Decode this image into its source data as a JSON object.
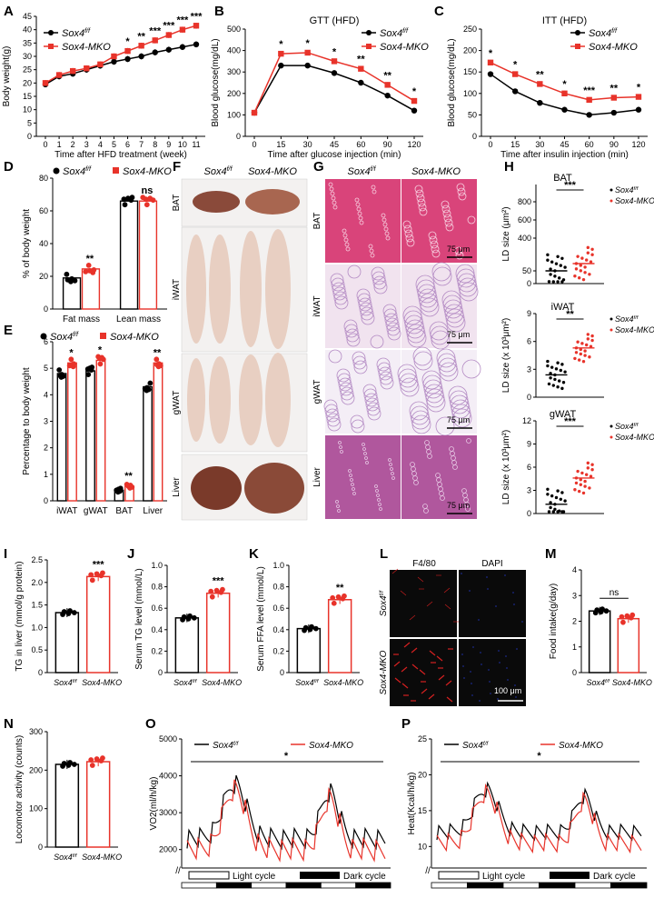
{
  "colors": {
    "ctrl": "#000000",
    "ko": "#e8332a",
    "okBlack": "#1a1a1a",
    "micro_blue": "#1c2a8a"
  },
  "legend": {
    "ctrl": "Sox4f/f",
    "ko": "Sox4-MKO"
  },
  "panels": [
    "A",
    "B",
    "C",
    "D",
    "E",
    "F",
    "G",
    "H",
    "I",
    "J",
    "K",
    "L",
    "M",
    "N",
    "O",
    "P"
  ],
  "chart_data": [
    {
      "id": "A",
      "type": "line",
      "xlabel": "Time after HFD treatment (week)",
      "ylabel": "Body weight(g)",
      "ylim": [
        0,
        45
      ],
      "yticks": [
        0,
        5,
        10,
        15,
        20,
        25,
        30,
        35,
        40,
        45
      ],
      "x": [
        0,
        1,
        2,
        3,
        4,
        5,
        6,
        7,
        8,
        9,
        10,
        11
      ],
      "series": [
        {
          "name": "Sox4f/f",
          "values": [
            19.5,
            22.5,
            23.5,
            25,
            26.5,
            28,
            29,
            30,
            31.5,
            32.5,
            33.5,
            34.5
          ]
        },
        {
          "name": "Sox4-MKO",
          "values": [
            20,
            23,
            24.5,
            25.5,
            27,
            30,
            32,
            34,
            36,
            38,
            40,
            41.5
          ]
        }
      ],
      "sig": [
        "",
        "",
        "",
        "",
        "",
        "",
        "*",
        "**",
        "***",
        "***",
        "***",
        "***"
      ]
    },
    {
      "id": "B",
      "type": "line",
      "title": "GTT (HFD)",
      "xlabel": "Time after glucose injection (min)",
      "ylabel": "Blood glucose(mg/dL)",
      "ylim": [
        0,
        500
      ],
      "yticks": [
        0,
        100,
        200,
        300,
        400,
        500
      ],
      "x": [
        0,
        15,
        30,
        45,
        60,
        90,
        120
      ],
      "series": [
        {
          "name": "Sox4f/f",
          "values": [
            110,
            330,
            330,
            295,
            250,
            190,
            120
          ]
        },
        {
          "name": "Sox4-MKO",
          "values": [
            110,
            385,
            390,
            350,
            315,
            240,
            165
          ]
        }
      ],
      "sig": [
        "",
        "*",
        "*",
        "*",
        "**",
        "**",
        "*"
      ]
    },
    {
      "id": "C",
      "type": "line",
      "title": "ITT (HFD)",
      "xlabel": "Time after insulin injection (min)",
      "ylabel": "Blood glucose(mg/dL)",
      "ylim": [
        0,
        250
      ],
      "yticks": [
        0,
        50,
        100,
        150,
        200,
        250
      ],
      "x": [
        0,
        15,
        30,
        45,
        60,
        90,
        120
      ],
      "series": [
        {
          "name": "Sox4f/f",
          "values": [
            145,
            105,
            78,
            62,
            50,
            55,
            62
          ]
        },
        {
          "name": "Sox4-MKO",
          "values": [
            172,
            145,
            122,
            100,
            85,
            90,
            92
          ]
        }
      ],
      "sig": [
        "*",
        "*",
        "**",
        "*",
        "***",
        "**",
        "*"
      ]
    },
    {
      "id": "D",
      "type": "bar",
      "ylabel": "% of body weight",
      "ylim": [
        0,
        80
      ],
      "yticks": [
        0,
        20,
        40,
        60,
        80
      ],
      "categories": [
        "Fat mass",
        "Lean mass"
      ],
      "series": [
        {
          "name": "Sox4f/f",
          "values": [
            19,
            66
          ]
        },
        {
          "name": "Sox4-MKO",
          "values": [
            24.5,
            66
          ]
        }
      ],
      "sig": [
        "**",
        "ns"
      ]
    },
    {
      "id": "E",
      "type": "bar",
      "ylabel": "Percentage to body weight",
      "ylim": [
        0,
        6
      ],
      "yticks": [
        0,
        1,
        2,
        3,
        4,
        5,
        6
      ],
      "categories": [
        "iWAT",
        "gWAT",
        "BAT",
        "Liver"
      ],
      "series": [
        {
          "name": "Sox4f/f",
          "values": [
            4.8,
            4.9,
            0.4,
            4.3
          ]
        },
        {
          "name": "Sox4-MKO",
          "values": [
            5.2,
            5.3,
            0.55,
            5.2
          ]
        }
      ],
      "sig": [
        "*",
        "*",
        "**",
        "**"
      ]
    },
    {
      "id": "H1",
      "type": "scatter",
      "title": "BAT",
      "ylabel": "LD size (μm²)",
      "ytick_labels": [
        "0",
        "50",
        "400",
        "600",
        "800"
      ],
      "groups": [
        "Sox4f/f",
        "Sox4-MKO"
      ],
      "means": [
        12,
        20
      ],
      "sig": "***"
    },
    {
      "id": "H2",
      "type": "scatter",
      "title": "iWAT",
      "ylabel": "LD size (x 10³μm²)",
      "ylim": [
        0,
        9
      ],
      "yticks": [
        0,
        3,
        6,
        9
      ],
      "groups": [
        "Sox4f/f",
        "Sox4-MKO"
      ],
      "means": [
        2.4,
        5.3
      ],
      "sig": "**"
    },
    {
      "id": "H3",
      "type": "scatter",
      "title": "gWAT",
      "ylabel": "LD size (x 10³μm²)",
      "ylim": [
        0,
        12
      ],
      "yticks": [
        0,
        3,
        6,
        9,
        12
      ],
      "groups": [
        "Sox4f/f",
        "Sox4-MKO"
      ],
      "means": [
        1.2,
        4.6
      ],
      "sig": "***"
    },
    {
      "id": "I",
      "type": "bar",
      "ylabel": "TG in liver (mmol/g protein)",
      "ylim": [
        0,
        2.5
      ],
      "yticks": [
        0,
        0.5,
        1.0,
        1.5,
        2.0,
        2.5
      ],
      "ytick_labels": [
        "0",
        "0.5",
        "1.0",
        "1.5",
        "2.0",
        "2.5"
      ],
      "categories": [
        "Sox4f/f",
        "Sox4-MKO"
      ],
      "values": [
        1.33,
        2.13
      ],
      "sig": "***"
    },
    {
      "id": "J",
      "type": "bar",
      "ylabel": "Serum TG level (mmol/L)",
      "ylim": [
        0,
        1.0
      ],
      "yticks": [
        0,
        0.2,
        0.4,
        0.6,
        0.8,
        1.0
      ],
      "ytick_labels": [
        "0",
        "0.2",
        "0.4",
        "0.6",
        "0.8",
        "1.0"
      ],
      "categories": [
        "Sox4f/f",
        "Sox4-MKO"
      ],
      "values": [
        0.51,
        0.74
      ],
      "sig": "***"
    },
    {
      "id": "K",
      "type": "bar",
      "ylabel": "Serum FFA level (mmol/L)",
      "ylim": [
        0,
        1.0
      ],
      "yticks": [
        0,
        0.2,
        0.4,
        0.6,
        0.8,
        1.0
      ],
      "ytick_labels": [
        "0",
        "0.2",
        "0.4",
        "0.6",
        "0.8",
        "1.0"
      ],
      "categories": [
        "Sox4f/f",
        "Sox4-MKO"
      ],
      "values": [
        0.41,
        0.68
      ],
      "sig": "**"
    },
    {
      "id": "M",
      "type": "bar",
      "ylabel": "Food intake(g/day)",
      "ylim": [
        0,
        4
      ],
      "yticks": [
        0,
        1,
        2,
        3,
        4
      ],
      "categories": [
        "Sox4f/f",
        "Sox4-MKO"
      ],
      "values": [
        2.4,
        2.1
      ],
      "sig": "ns"
    },
    {
      "id": "N",
      "type": "bar",
      "ylabel": "Locomotor activity (counts)",
      "ylim": [
        0,
        300
      ],
      "yticks": [
        0,
        100,
        200,
        300
      ],
      "categories": [
        "Sox4f/f",
        "Sox4-MKO"
      ],
      "values": [
        215,
        222
      ]
    },
    {
      "id": "O",
      "type": "line",
      "ylabel": "VO2(ml/h/kg)",
      "ylim": [
        1500,
        5000
      ],
      "yticks": [
        2000,
        3000,
        4000,
        5000
      ],
      "sig": "*",
      "cycles": [
        "Light cycle",
        "Dark cycle"
      ]
    },
    {
      "id": "P",
      "type": "line",
      "ylabel": "Heat(Kcal/h/kg)",
      "ylim": [
        7,
        25
      ],
      "yticks": [
        10,
        15,
        20,
        25
      ],
      "sig": "*",
      "cycles": [
        "Light cycle",
        "Dark cycle"
      ]
    }
  ],
  "images": {
    "F_cols": [
      "Sox4f/f",
      "Sox4-MKO"
    ],
    "F_rows": [
      "BAT",
      "iWAT",
      "gWAT",
      "Liver"
    ],
    "G_cols": [
      "Sox4f/f",
      "Sox4-MKO"
    ],
    "G_rows": [
      "BAT",
      "iWAT",
      "gWAT",
      "Liver"
    ],
    "G_scale": "75 μm",
    "L_cols": [
      "F4/80",
      "DAPI"
    ],
    "L_rows": [
      "Sox4f/f",
      "Sox4-MKO"
    ],
    "L_scale": "100 μm"
  }
}
